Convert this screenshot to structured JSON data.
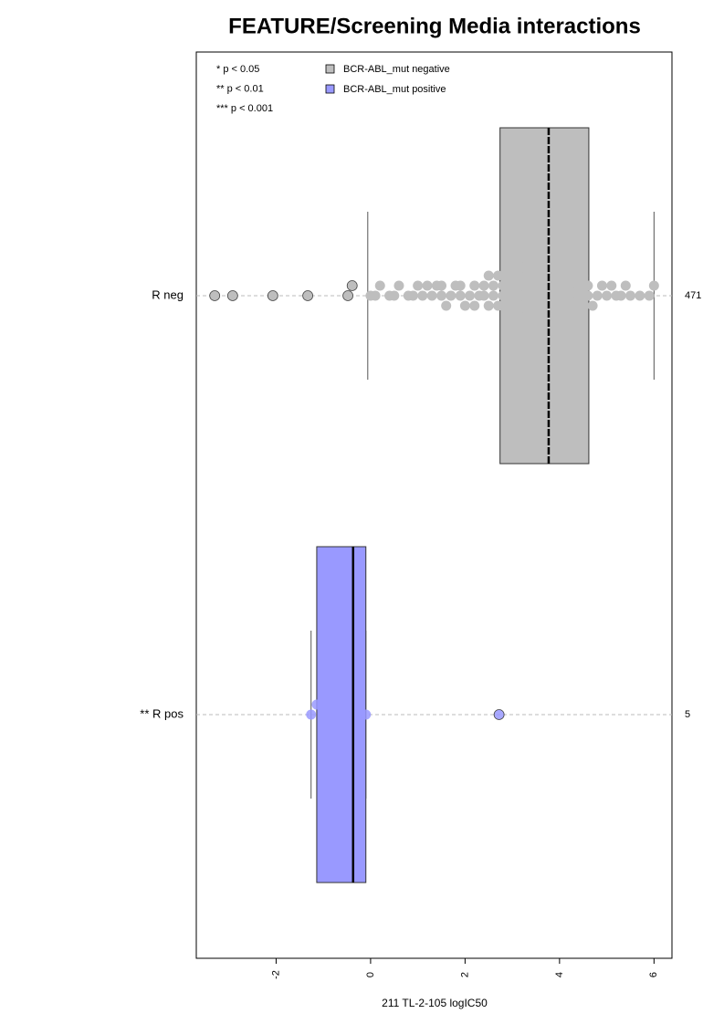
{
  "chart_data": {
    "type": "box",
    "title": "FEATURE/Screening Media interactions",
    "x_label": "211 TL-2-105 logIC50",
    "xlim": [
      -3.69,
      6.38
    ],
    "xticks": [
      -2,
      0,
      2,
      4,
      6
    ],
    "notes": [
      "* p < 0.05",
      "** p < 0.01",
      "*** p < 0.001"
    ],
    "categories": [
      "R neg",
      "** R pos"
    ],
    "counts": [
      471,
      5
    ],
    "series": [
      {
        "name": "BCR-ABL_mut negative",
        "color": "#bebebe",
        "whisker_low": -0.06,
        "q1": 2.74,
        "median": 3.77,
        "q3": 4.62,
        "whisker_high": 6.0,
        "points": [
          -3.3,
          -2.92,
          -2.07,
          -1.33,
          -0.48,
          -0.39,
          0.0,
          0.1,
          0.2,
          0.4,
          0.5,
          0.6,
          0.8,
          0.9,
          1.0,
          1.1,
          1.2,
          1.3,
          1.4,
          1.5,
          1.5,
          1.6,
          1.7,
          1.8,
          1.9,
          1.9,
          2.0,
          2.1,
          2.2,
          2.2,
          2.3,
          2.4,
          2.4,
          2.5,
          2.5,
          2.6,
          2.6,
          2.7,
          2.7,
          2.8,
          2.8,
          2.8,
          2.9,
          2.9,
          3.0,
          3.0,
          3.0,
          3.1,
          3.1,
          3.1,
          3.2,
          3.2,
          3.2,
          3.3,
          3.3,
          3.3,
          3.4,
          3.4,
          3.4,
          3.5,
          3.5,
          3.5,
          3.6,
          3.6,
          3.6,
          3.7,
          3.7,
          3.7,
          3.8,
          3.8,
          3.8,
          3.9,
          3.9,
          3.9,
          4.0,
          4.0,
          4.0,
          4.1,
          4.1,
          4.1,
          4.2,
          4.2,
          4.2,
          4.3,
          4.3,
          4.4,
          4.4,
          4.5,
          4.5,
          4.6,
          4.6,
          4.7,
          4.8,
          4.9,
          5.0,
          5.1,
          5.2,
          5.3,
          5.4,
          5.5,
          5.7,
          5.9,
          6.0
        ]
      },
      {
        "name": "BCR-ABL_mut positive",
        "color": "#9999ff",
        "whisker_low": -1.26,
        "q1": -1.14,
        "median": -0.37,
        "q3": -0.1,
        "whisker_high": -0.1,
        "points": [
          -1.26,
          -1.14,
          -0.37,
          -0.1,
          2.72
        ]
      }
    ]
  }
}
